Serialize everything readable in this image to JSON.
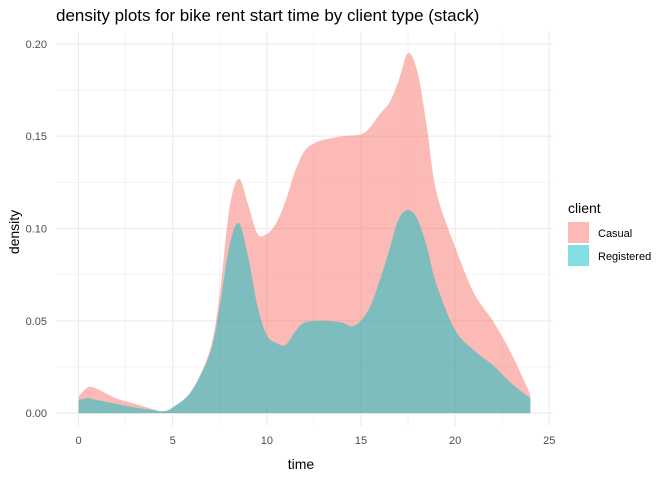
{
  "chart_data": {
    "type": "area",
    "title": "density plots for bike rent start time by client type (stack)",
    "xlabel": "time",
    "ylabel": "density",
    "xlim": [
      -1.2,
      25.2
    ],
    "ylim": [
      -0.007,
      0.207
    ],
    "x_ticks": [
      "0",
      "5",
      "10",
      "15",
      "20",
      "25"
    ],
    "x_tick_values": [
      0,
      5,
      10,
      15,
      20,
      25
    ],
    "y_ticks": [
      "0.00",
      "0.05",
      "0.10",
      "0.15",
      "0.20"
    ],
    "y_tick_values": [
      0,
      0.05,
      0.1,
      0.15,
      0.2
    ],
    "grid": true,
    "stacked": true,
    "legend": {
      "title": "client",
      "position": "right"
    },
    "series": [
      {
        "name": "Casual",
        "color": "#F8766D",
        "points": [
          [
            0,
            0.009
          ],
          [
            0.5,
            0.014
          ],
          [
            1,
            0.013
          ],
          [
            2,
            0.008
          ],
          [
            3,
            0.005
          ],
          [
            4,
            0.002
          ],
          [
            4.5,
            0.001
          ],
          [
            5,
            0.003
          ],
          [
            6,
            0.012
          ],
          [
            7,
            0.035
          ],
          [
            7.5,
            0.065
          ],
          [
            8,
            0.11
          ],
          [
            8.5,
            0.127
          ],
          [
            9,
            0.113
          ],
          [
            9.5,
            0.097
          ],
          [
            10,
            0.097
          ],
          [
            10.5,
            0.103
          ],
          [
            11,
            0.115
          ],
          [
            11.5,
            0.131
          ],
          [
            12,
            0.142
          ],
          [
            12.5,
            0.146
          ],
          [
            13,
            0.148
          ],
          [
            14,
            0.15
          ],
          [
            15,
            0.151
          ],
          [
            15.5,
            0.155
          ],
          [
            16,
            0.162
          ],
          [
            16.5,
            0.168
          ],
          [
            17,
            0.18
          ],
          [
            17.5,
            0.195
          ],
          [
            18,
            0.185
          ],
          [
            18.5,
            0.155
          ],
          [
            19,
            0.12
          ],
          [
            20,
            0.09
          ],
          [
            21,
            0.065
          ],
          [
            22,
            0.05
          ],
          [
            23,
            0.032
          ],
          [
            24,
            0.01
          ]
        ]
      },
      {
        "name": "Registered",
        "color": "#00BFC4",
        "points": [
          [
            0,
            0.007
          ],
          [
            0.5,
            0.008
          ],
          [
            1,
            0.007
          ],
          [
            2,
            0.005
          ],
          [
            3,
            0.003
          ],
          [
            4,
            0.0015
          ],
          [
            4.5,
            0.001
          ],
          [
            5,
            0.003
          ],
          [
            6,
            0.012
          ],
          [
            7,
            0.033
          ],
          [
            7.5,
            0.058
          ],
          [
            8,
            0.09
          ],
          [
            8.5,
            0.103
          ],
          [
            9,
            0.085
          ],
          [
            9.5,
            0.058
          ],
          [
            10,
            0.042
          ],
          [
            10.5,
            0.038
          ],
          [
            11,
            0.037
          ],
          [
            11.5,
            0.044
          ],
          [
            12,
            0.049
          ],
          [
            13,
            0.05
          ],
          [
            14,
            0.049
          ],
          [
            14.5,
            0.047
          ],
          [
            15,
            0.05
          ],
          [
            15.5,
            0.058
          ],
          [
            16,
            0.072
          ],
          [
            16.5,
            0.088
          ],
          [
            17,
            0.105
          ],
          [
            17.5,
            0.11
          ],
          [
            18,
            0.105
          ],
          [
            18.5,
            0.09
          ],
          [
            19,
            0.07
          ],
          [
            20,
            0.045
          ],
          [
            21,
            0.034
          ],
          [
            22,
            0.026
          ],
          [
            23,
            0.016
          ],
          [
            24,
            0.008
          ]
        ]
      }
    ]
  }
}
